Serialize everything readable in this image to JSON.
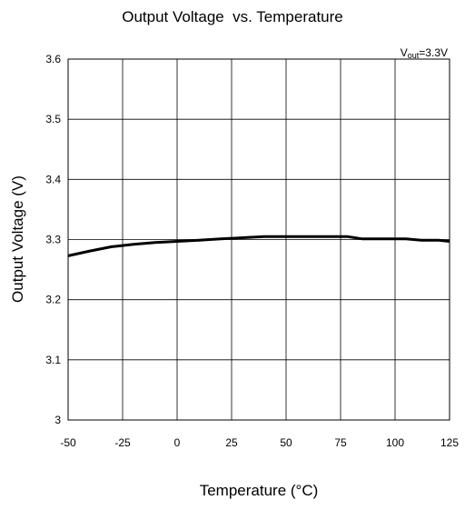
{
  "chart_data": {
    "type": "line",
    "title": "Output Voltage  vs. Temperature",
    "xlabel": "Temperature (°C)",
    "ylabel": "Output Voltage (V)",
    "xlim": [
      -50,
      125
    ],
    "ylim": [
      3.0,
      3.6
    ],
    "x_ticks": [
      -50,
      -25,
      0,
      25,
      50,
      75,
      100,
      125
    ],
    "x_tick_labels": [
      "-50",
      "-25",
      "0",
      "25",
      "50",
      "75",
      "100",
      "125"
    ],
    "y_ticks": [
      3.0,
      3.1,
      3.2,
      3.3,
      3.4,
      3.5,
      3.6
    ],
    "y_tick_labels": [
      "3",
      "3.1",
      "3.2",
      "3.3",
      "3.4",
      "3.5",
      "3.6"
    ],
    "grid": true,
    "annotation": {
      "prefix": "V",
      "subscript": "out",
      "suffix": "=3.3V"
    },
    "series": [
      {
        "x": [
          -50,
          -40,
          -30,
          -20,
          -10,
          0,
          10,
          20,
          30,
          40,
          50,
          60,
          70,
          78,
          85,
          95,
          105,
          112,
          120,
          125
        ],
        "y": [
          3.273,
          3.281,
          3.288,
          3.292,
          3.295,
          3.297,
          3.299,
          3.301,
          3.303,
          3.305,
          3.305,
          3.305,
          3.305,
          3.305,
          3.301,
          3.301,
          3.301,
          3.299,
          3.299,
          3.297
        ]
      }
    ]
  }
}
